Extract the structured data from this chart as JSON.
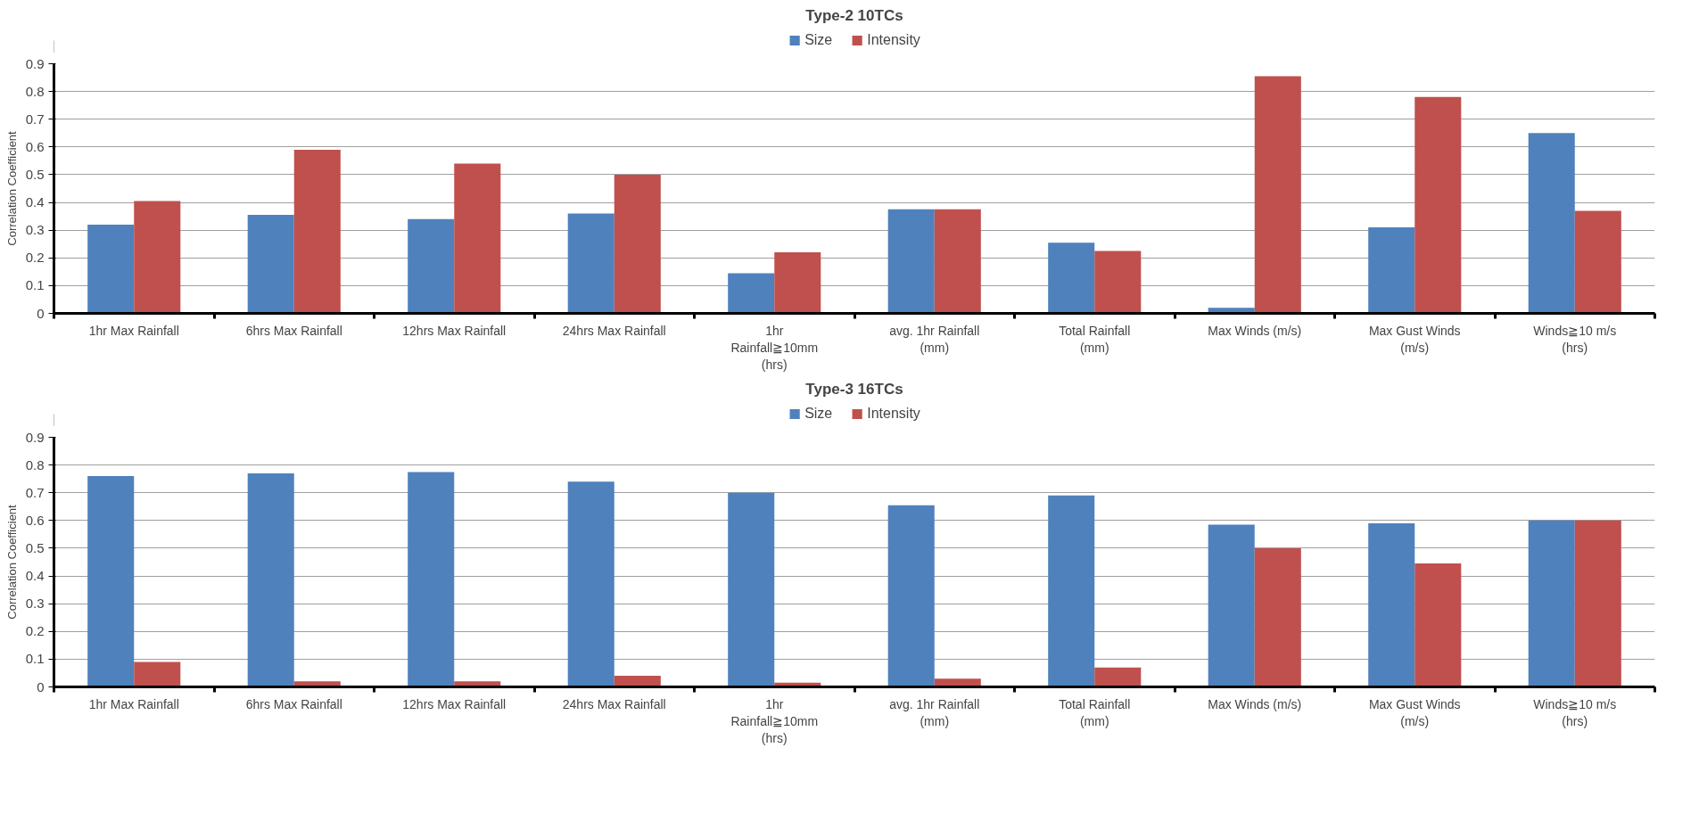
{
  "chart_data": [
    {
      "type": "bar",
      "title": "Type-2 10TCs",
      "ylabel": "Correlation Coefficient",
      "categories": [
        "1hr Max Rainfall",
        "6hrs Max Rainfall",
        "12hrs Max Rainfall",
        "24hrs Max Rainfall",
        "1hr\nRainfall≧10mm\n(hrs)",
        "avg. 1hr Rainfall\n(mm)",
        "Total Rainfall\n(mm)",
        "Max Winds (m/s)",
        "Max Gust Winds\n(m/s)",
        "Winds≧10 m/s\n(hrs)"
      ],
      "series": [
        {
          "name": "Size",
          "color": "#4f81bd",
          "values": [
            0.32,
            0.355,
            0.34,
            0.36,
            0.145,
            0.375,
            0.255,
            0.02,
            0.31,
            0.65
          ]
        },
        {
          "name": "Intensity",
          "color": "#c0504d",
          "values": [
            0.405,
            0.59,
            0.54,
            0.5,
            0.22,
            0.375,
            0.225,
            0.855,
            0.78,
            0.37
          ]
        }
      ],
      "ylim": [
        0,
        0.9
      ],
      "yticks": [
        0,
        0.1,
        0.2,
        0.3,
        0.4,
        0.5,
        0.6,
        0.7,
        0.8,
        0.9
      ],
      "grid": "y",
      "legend": "top"
    },
    {
      "type": "bar",
      "title": "Type-3 16TCs",
      "ylabel": "Correlation Coefficient",
      "categories": [
        "1hr Max Rainfall",
        "6hrs Max Rainfall",
        "12hrs Max Rainfall",
        "24hrs Max Rainfall",
        "1hr\nRainfall≧10mm\n(hrs)",
        "avg. 1hr Rainfall\n(mm)",
        "Total Rainfall\n(mm)",
        "Max Winds (m/s)",
        "Max Gust Winds\n(m/s)",
        "Winds≧10 m/s\n(hrs)"
      ],
      "series": [
        {
          "name": "Size",
          "color": "#4f81bd",
          "values": [
            0.76,
            0.77,
            0.775,
            0.74,
            0.7,
            0.655,
            0.69,
            0.585,
            0.59,
            0.6
          ]
        },
        {
          "name": "Intensity",
          "color": "#c0504d",
          "values": [
            0.09,
            0.02,
            0.02,
            0.04,
            0.015,
            0.03,
            0.07,
            0.5,
            0.445,
            0.6
          ]
        }
      ],
      "ylim": [
        0,
        0.9
      ],
      "yticks": [
        0,
        0.1,
        0.2,
        0.3,
        0.4,
        0.5,
        0.6,
        0.7,
        0.8,
        0.9
      ],
      "grid": "y",
      "legend": "top"
    }
  ]
}
